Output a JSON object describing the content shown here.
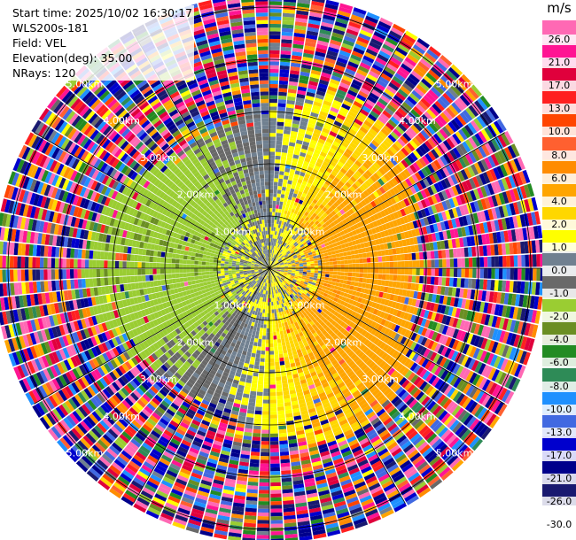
{
  "info": {
    "start_time": "Start time: 2025/10/02 16:30:17",
    "instrument": "WLS200s-181",
    "field": "Field: VEL",
    "elevation": "Elevation(deg): 35.00",
    "nrays": "NRays: 120"
  },
  "chart_data": {
    "type": "heatmap",
    "projection": "polar PPI",
    "field": "VEL",
    "units": "m/s",
    "n_rays": 120,
    "elevation_deg": 35.0,
    "range_rings_km": [
      1,
      2,
      3,
      4,
      5
    ],
    "range_ring_labels": [
      "1.00km",
      "2.00km",
      "3.00km",
      "4.00km",
      "5.00km"
    ],
    "colorbar": {
      "label": "m/s",
      "ticks": [
        "26.0",
        "21.0",
        "17.0",
        "13.0",
        "10.0",
        "8.0",
        "6.0",
        "4.0",
        "2.0",
        "1.0",
        "0.0",
        "-1.0",
        "-2.0",
        "-4.0",
        "-6.0",
        "-8.0",
        "-10.0",
        "-13.0",
        "-17.0",
        "-21.0",
        "-26.0",
        "-30.0"
      ],
      "colors": [
        "#ff69b4",
        "#ff1493",
        "#e0003c",
        "#ff2020",
        "#ff4500",
        "#ff6030",
        "#ff8c00",
        "#ffa500",
        "#ffd700",
        "#ffff00",
        "#708090",
        "#696969",
        "#9acd32",
        "#6b8e23",
        "#228b22",
        "#2e8b57",
        "#1e90ff",
        "#4169e1",
        "#0000cd",
        "#00008b",
        "#191970"
      ]
    }
  }
}
